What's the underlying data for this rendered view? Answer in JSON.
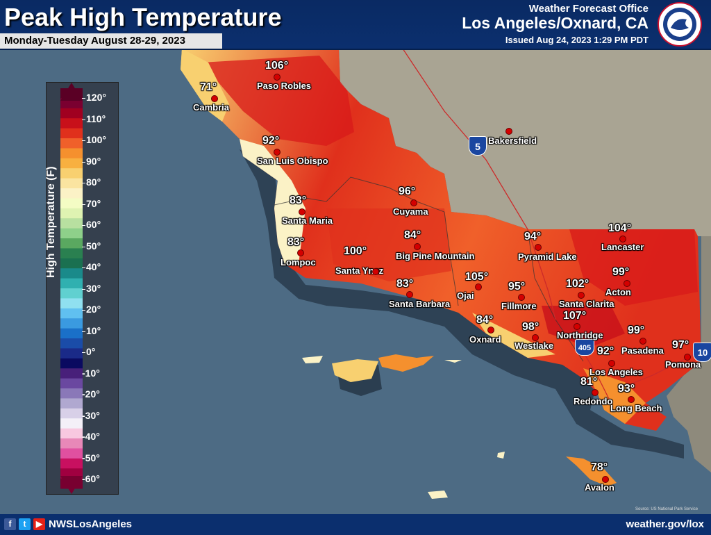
{
  "header": {
    "title": "Peak High Temperature",
    "subtitle": "Monday-Tuesday August 28-29, 2023",
    "office_label": "Weather Forecast Office",
    "office_city": "Los Angeles/Oxnard, CA",
    "issued": "Issued Aug 24, 2023 1:29 PM PDT"
  },
  "footer": {
    "handle": "NWSLosAngeles",
    "site": "weather.gov/lox",
    "source": "Source: US National Park Service"
  },
  "legend": {
    "axis_label": "High Temperature (F)",
    "ticks": [
      "120°",
      "110°",
      "100°",
      "90°",
      "80°",
      "70°",
      "60°",
      "50°",
      "40°",
      "30°",
      "20°",
      "10°",
      "0°",
      "-10°",
      "-20°",
      "-30°",
      "-40°",
      "-50°",
      "-60°"
    ],
    "colors_top_to_bottom": [
      "#5a0025",
      "#7a0030",
      "#a00020",
      "#c8101a",
      "#e0301c",
      "#f0602a",
      "#f5902e",
      "#f8b040",
      "#f8d070",
      "#fae4a0",
      "#fbf2c6",
      "#f4fcc4",
      "#dff3b2",
      "#b8e0a0",
      "#8ed08a",
      "#5aa860",
      "#2a8050",
      "#1a7050",
      "#1a8a8a",
      "#30b0b0",
      "#60d0d0",
      "#90e0f0",
      "#60c0f0",
      "#3a9ae0",
      "#1a70c8",
      "#1a4ca8",
      "#1a2a88",
      "#0a0a60",
      "#48207a",
      "#6a48a0",
      "#8a78b8",
      "#b0a8d0",
      "#d8d0e8",
      "#f4f0f8",
      "#f8c8e0",
      "#e888b8",
      "#e050a0",
      "#c81060",
      "#a00040",
      "#780030"
    ]
  },
  "roads": [
    "5",
    "405",
    "10"
  ],
  "stations": [
    {
      "name": "Paso Robles",
      "temp": "106°"
    },
    {
      "name": "Cambria",
      "temp": "71°"
    },
    {
      "name": "San Luis Obispo",
      "temp": "92°"
    },
    {
      "name": "Bakersfield",
      "temp": ""
    },
    {
      "name": "Santa Maria",
      "temp": "83°"
    },
    {
      "name": "Cuyama",
      "temp": "96°"
    },
    {
      "name": "Lompoc",
      "temp": "83°"
    },
    {
      "name": "Santa Ynez",
      "temp": "100°"
    },
    {
      "name": "Big Pine Mountain",
      "temp": "84°"
    },
    {
      "name": "Santa Barbara",
      "temp": "83°"
    },
    {
      "name": "Pyramid Lake",
      "temp": "94°"
    },
    {
      "name": "Lancaster",
      "temp": "104°"
    },
    {
      "name": "Ojai",
      "temp": "105°"
    },
    {
      "name": "Fillmore",
      "temp": "95°"
    },
    {
      "name": "Santa Clarita",
      "temp": "102°"
    },
    {
      "name": "Acton",
      "temp": "99°"
    },
    {
      "name": "Oxnard",
      "temp": "84°"
    },
    {
      "name": "Westlake",
      "temp": "98°"
    },
    {
      "name": "Northridge",
      "temp": "107°"
    },
    {
      "name": "Pasadena",
      "temp": "99°"
    },
    {
      "name": "Pomona",
      "temp": "97°"
    },
    {
      "name": "Los Angeles",
      "temp": "92°"
    },
    {
      "name": "Redondo",
      "temp": "81°"
    },
    {
      "name": "Long Beach",
      "temp": "93°"
    },
    {
      "name": "Avalon",
      "temp": "78°"
    }
  ]
}
